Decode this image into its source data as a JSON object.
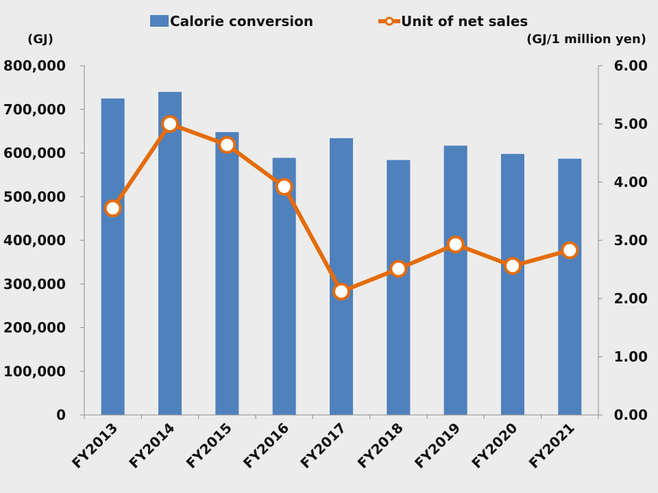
{
  "chart_data": {
    "type": "bar",
    "categories": [
      "FY2013",
      "FY2014",
      "FY2015",
      "FY2016",
      "FY2017",
      "FY2018",
      "FY2019",
      "FY2020",
      "FY2021"
    ],
    "series": [
      {
        "name": "Calorie conversion",
        "type": "bar",
        "axis": "left",
        "color": "#4f81bd",
        "values": [
          725000,
          740000,
          648000,
          589000,
          634000,
          584000,
          617000,
          598000,
          587000
        ]
      },
      {
        "name": "Unit of net sales",
        "type": "line",
        "axis": "right",
        "color": "#e46c0a",
        "values": [
          3.55,
          5.0,
          4.64,
          3.92,
          2.12,
          2.51,
          2.93,
          2.56,
          2.83
        ]
      }
    ],
    "left_axis": {
      "unit": "(GJ)",
      "ylim": [
        0,
        800000
      ],
      "ticks": [
        "0",
        "100,000",
        "200,000",
        "300,000",
        "400,000",
        "500,000",
        "600,000",
        "700,000",
        "800,000"
      ]
    },
    "right_axis": {
      "unit": "(GJ/1 million yen)",
      "ylim": [
        0,
        6
      ],
      "ticks": [
        "0.00",
        "1.00",
        "2.00",
        "3.00",
        "4.00",
        "5.00",
        "6.00"
      ]
    },
    "legend": {
      "position": "top",
      "entries": [
        "Calorie conversion",
        "Unit of net sales"
      ]
    },
    "grid": false
  }
}
